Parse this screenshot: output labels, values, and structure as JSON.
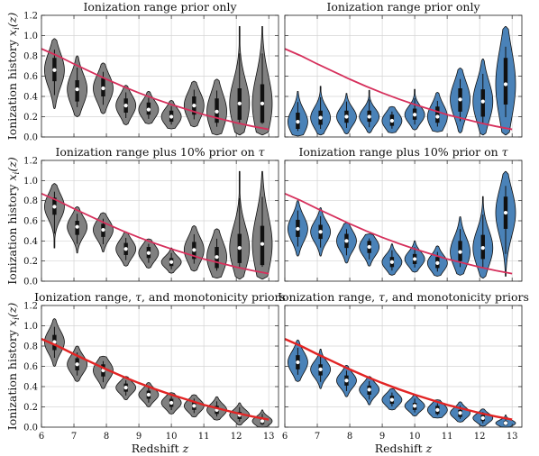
{
  "colors": {
    "gray_violin": "#808080",
    "blue_violin": "#4a82b8",
    "curve_magenta": "#d6305c",
    "curve_red": "#e22424"
  },
  "chart_data": [
    {
      "type": "violin",
      "title": "Ionization range prior only",
      "ylabel": "Ionization history ",
      "ylabel_math": "x_i(z)",
      "xlabel": "",
      "color": "gray",
      "curve": "magenta",
      "show_yticks": true,
      "show_xticks": false,
      "x": [
        6.4,
        7.1,
        7.9,
        8.6,
        9.3,
        10.0,
        10.7,
        11.4,
        12.1,
        12.8
      ],
      "median": [
        0.66,
        0.47,
        0.48,
        0.31,
        0.27,
        0.2,
        0.31,
        0.25,
        0.33,
        0.33
      ],
      "q1": [
        0.55,
        0.35,
        0.4,
        0.24,
        0.22,
        0.15,
        0.22,
        0.14,
        0.17,
        0.14
      ],
      "q3": [
        0.78,
        0.56,
        0.58,
        0.38,
        0.34,
        0.26,
        0.4,
        0.38,
        0.48,
        0.52
      ],
      "min": [
        0.28,
        0.2,
        0.23,
        0.12,
        0.13,
        0.08,
        0.1,
        0.02,
        0.02,
        0.02
      ],
      "max": [
        0.97,
        0.8,
        0.73,
        0.51,
        0.45,
        0.36,
        0.55,
        0.57,
        1.09,
        1.09
      ],
      "ylim": [
        0,
        1.2
      ],
      "xlim": [
        6,
        13.3
      ]
    },
    {
      "type": "violin",
      "title": "Ionization range prior only",
      "ylabel": "",
      "ylabel_math": "",
      "xlabel": "",
      "color": "blue",
      "curve": "magenta",
      "show_yticks": false,
      "show_xticks": false,
      "x": [
        6.4,
        7.1,
        7.9,
        8.6,
        9.3,
        10.0,
        10.7,
        11.4,
        12.1,
        12.8
      ],
      "median": [
        0.15,
        0.19,
        0.2,
        0.2,
        0.16,
        0.22,
        0.2,
        0.37,
        0.35,
        0.52
      ],
      "q1": [
        0.08,
        0.12,
        0.14,
        0.15,
        0.11,
        0.17,
        0.14,
        0.25,
        0.2,
        0.32
      ],
      "q3": [
        0.24,
        0.26,
        0.26,
        0.26,
        0.22,
        0.28,
        0.3,
        0.48,
        0.47,
        0.78
      ],
      "min": [
        0.01,
        0.02,
        0.03,
        0.04,
        0.04,
        0.07,
        0.05,
        0.04,
        0.02,
        0.02
      ],
      "max": [
        0.45,
        0.5,
        0.43,
        0.46,
        0.3,
        0.47,
        0.44,
        0.68,
        0.77,
        1.09
      ],
      "ylim": [
        0,
        1.2
      ],
      "xlim": [
        6,
        13.3
      ]
    },
    {
      "type": "violin",
      "title": "Ionization range plus 10% prior on ",
      "title_math": "τ",
      "ylabel": "Ionization history ",
      "ylabel_math": "x_i(z)",
      "xlabel": "",
      "color": "gray",
      "curve": "magenta",
      "show_yticks": true,
      "show_xticks": false,
      "x": [
        6.4,
        7.1,
        7.9,
        8.6,
        9.3,
        10.0,
        10.7,
        11.4,
        12.1,
        12.8
      ],
      "median": [
        0.74,
        0.54,
        0.51,
        0.32,
        0.28,
        0.19,
        0.31,
        0.24,
        0.33,
        0.37
      ],
      "q1": [
        0.66,
        0.46,
        0.44,
        0.26,
        0.23,
        0.15,
        0.22,
        0.13,
        0.18,
        0.16
      ],
      "q3": [
        0.83,
        0.6,
        0.57,
        0.38,
        0.34,
        0.23,
        0.39,
        0.34,
        0.47,
        0.55
      ],
      "min": [
        0.33,
        0.28,
        0.29,
        0.15,
        0.13,
        0.08,
        0.1,
        0.03,
        0.02,
        0.02
      ],
      "max": [
        0.97,
        0.74,
        0.68,
        0.49,
        0.42,
        0.33,
        0.55,
        0.52,
        1.09,
        1.09
      ],
      "ylim": [
        0,
        1.2
      ],
      "xlim": [
        6,
        13.3
      ]
    },
    {
      "type": "violin",
      "title": "Ionization range plus 10% prior on ",
      "title_math": "τ",
      "ylabel": "",
      "ylabel_math": "",
      "xlabel": "",
      "color": "blue",
      "curve": "magenta",
      "show_yticks": false,
      "show_xticks": false,
      "x": [
        6.4,
        7.1,
        7.9,
        8.6,
        9.3,
        10.0,
        10.7,
        11.4,
        12.1,
        12.8
      ],
      "median": [
        0.52,
        0.49,
        0.4,
        0.34,
        0.19,
        0.22,
        0.18,
        0.29,
        0.33,
        0.68
      ],
      "q1": [
        0.44,
        0.42,
        0.33,
        0.28,
        0.14,
        0.17,
        0.13,
        0.2,
        0.22,
        0.52
      ],
      "q3": [
        0.61,
        0.56,
        0.47,
        0.4,
        0.24,
        0.27,
        0.24,
        0.4,
        0.46,
        0.84
      ],
      "min": [
        0.25,
        0.25,
        0.18,
        0.15,
        0.06,
        0.09,
        0.05,
        0.06,
        0.03,
        0.05
      ],
      "max": [
        0.8,
        0.73,
        0.58,
        0.47,
        0.37,
        0.4,
        0.35,
        0.64,
        0.84,
        1.09
      ],
      "ylim": [
        0,
        1.2
      ],
      "xlim": [
        6,
        13.3
      ]
    },
    {
      "type": "violin",
      "title": "Ionization range, ",
      "title_math": "τ",
      "title_suffix": ", and monotonicity priors",
      "ylabel": "Ionization history ",
      "ylabel_math": "x_i(z)",
      "xlabel": "Redshift ",
      "xlabel_math": "z",
      "color": "gray",
      "curve": "red",
      "show_yticks": true,
      "show_xticks": true,
      "x": [
        6.4,
        7.1,
        7.9,
        8.6,
        9.3,
        10.0,
        10.7,
        11.4,
        12.1,
        12.8
      ],
      "median": [
        0.84,
        0.62,
        0.56,
        0.39,
        0.32,
        0.24,
        0.21,
        0.17,
        0.12,
        0.06
      ],
      "q1": [
        0.76,
        0.56,
        0.5,
        0.35,
        0.28,
        0.2,
        0.17,
        0.13,
        0.08,
        0.03
      ],
      "q3": [
        0.91,
        0.68,
        0.62,
        0.43,
        0.36,
        0.28,
        0.25,
        0.21,
        0.15,
        0.09
      ],
      "min": [
        0.6,
        0.45,
        0.38,
        0.27,
        0.2,
        0.13,
        0.1,
        0.07,
        0.02,
        0.0
      ],
      "max": [
        1.07,
        0.8,
        0.7,
        0.5,
        0.44,
        0.34,
        0.32,
        0.3,
        0.24,
        0.17
      ],
      "ylim": [
        0,
        1.2
      ],
      "xlim": [
        6,
        13.3
      ]
    },
    {
      "type": "violin",
      "title": "Ionization range, ",
      "title_math": "τ",
      "title_suffix": ", and monotonicity priors",
      "ylabel": "",
      "ylabel_math": "",
      "xlabel": "Redshift ",
      "xlabel_math": "z",
      "color": "blue",
      "curve": "red",
      "show_yticks": false,
      "show_xticks": true,
      "x": [
        6.4,
        7.1,
        7.9,
        8.6,
        9.3,
        10.0,
        10.7,
        11.4,
        12.1,
        12.8
      ],
      "median": [
        0.64,
        0.57,
        0.46,
        0.37,
        0.27,
        0.21,
        0.17,
        0.14,
        0.09,
        0.04
      ],
      "q1": [
        0.57,
        0.51,
        0.41,
        0.32,
        0.23,
        0.17,
        0.13,
        0.1,
        0.06,
        0.02
      ],
      "q3": [
        0.71,
        0.62,
        0.51,
        0.41,
        0.31,
        0.24,
        0.21,
        0.17,
        0.12,
        0.06
      ],
      "min": [
        0.45,
        0.38,
        0.3,
        0.22,
        0.17,
        0.11,
        0.09,
        0.05,
        0.01,
        0.0
      ],
      "max": [
        0.86,
        0.77,
        0.61,
        0.5,
        0.38,
        0.32,
        0.27,
        0.25,
        0.18,
        0.12
      ],
      "ylim": [
        0,
        1.2
      ],
      "xlim": [
        6,
        13.3
      ]
    }
  ],
  "axes": {
    "yticks": [
      "0.0",
      "0.2",
      "0.4",
      "0.6",
      "0.8",
      "1.0",
      "1.2"
    ],
    "ytick_values": [
      0,
      0.2,
      0.4,
      0.6,
      0.8,
      1.0,
      1.2
    ],
    "xticks": [
      "6",
      "7",
      "8",
      "9",
      "10",
      "11",
      "12",
      "13"
    ],
    "xtick_values": [
      6,
      7,
      8,
      9,
      10,
      11,
      12,
      13
    ]
  },
  "reference_curve": {
    "z": [
      6.0,
      6.5,
      7.0,
      7.5,
      8.0,
      8.5,
      9.0,
      9.5,
      10.0,
      10.5,
      11.0,
      11.5,
      12.0,
      12.5,
      13.0
    ],
    "xi": [
      0.87,
      0.8,
      0.72,
      0.645,
      0.57,
      0.5,
      0.435,
      0.375,
      0.32,
      0.27,
      0.22,
      0.18,
      0.14,
      0.105,
      0.075
    ]
  }
}
